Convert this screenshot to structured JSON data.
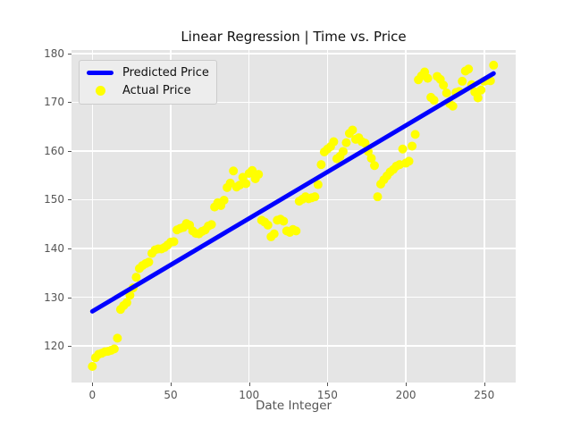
{
  "legend": {
    "position": "upper left",
    "items": [
      {
        "label": "Predicted Price",
        "marker": "line",
        "color": "#0000ff"
      },
      {
        "label": "Actual Price",
        "marker": "dot",
        "color": "#ffff00"
      }
    ]
  },
  "colors": {
    "figure_bg": "#ffffff",
    "plot_bg": "#e5e5e5",
    "grid": "#ffffff",
    "tick": "#555555",
    "tick_label": "#555555",
    "axis_label": "#555555",
    "title": "#111111",
    "legend_bg": "#ededed",
    "legend_border": "#cccccc",
    "line": "#0000ff",
    "scatter": "#ffff00"
  },
  "chart_data": {
    "type": "scatter",
    "title": "Linear Regression | Time vs. Price",
    "xlabel": "Date Integer",
    "ylabel": "",
    "axes": {
      "xlim": [
        -13.3,
        270.1
      ],
      "ylim": [
        112.5,
        180.7
      ],
      "xticks": [
        0,
        50,
        100,
        150,
        200,
        250
      ],
      "yticks": [
        120,
        130,
        140,
        150,
        160,
        170,
        180
      ],
      "grid": true
    },
    "series": [
      {
        "name": "Predicted Price",
        "type": "line",
        "color": "#0000ff",
        "x": [
          0,
          256
        ],
        "y": [
          127.1,
          175.9
        ]
      },
      {
        "name": "Actual Price",
        "type": "scatter",
        "color": "#ffff00",
        "x": [
          0,
          2,
          4,
          6,
          8,
          10,
          12,
          14,
          16,
          18,
          20,
          22,
          24,
          26,
          28,
          30,
          32,
          34,
          36,
          38,
          40,
          42,
          44,
          46,
          48,
          50,
          52,
          54,
          56,
          58,
          60,
          62,
          64,
          66,
          68,
          70,
          72,
          74,
          76,
          78,
          80,
          82,
          84,
          86,
          88,
          90,
          92,
          94,
          96,
          98,
          100,
          102,
          104,
          106,
          108,
          110,
          112,
          114,
          116,
          118,
          120,
          122,
          124,
          126,
          128,
          130,
          132,
          134,
          136,
          138,
          140,
          142,
          144,
          146,
          148,
          150,
          152,
          154,
          156,
          158,
          160,
          162,
          164,
          166,
          168,
          170,
          172,
          174,
          176,
          178,
          180,
          182,
          184,
          186,
          188,
          190,
          192,
          194,
          196,
          198,
          200,
          202,
          204,
          206,
          208,
          210,
          212,
          214,
          216,
          218,
          220,
          222,
          224,
          226,
          228,
          230,
          232,
          234,
          236,
          238,
          240,
          242,
          244,
          246,
          248,
          250,
          252,
          254,
          256
        ],
        "y": [
          115.8,
          117.6,
          118.3,
          118.5,
          118.8,
          118.9,
          119.1,
          119.4,
          121.6,
          127.5,
          128.3,
          128.9,
          130.4,
          131.9,
          134.1,
          135.9,
          136.5,
          136.9,
          137.2,
          139.0,
          139.7,
          139.9,
          139.9,
          140.2,
          140.7,
          141.3,
          141.4,
          143.8,
          144.1,
          144.3,
          145.1,
          144.8,
          143.6,
          143.1,
          143.0,
          143.5,
          143.8,
          144.6,
          144.9,
          148.5,
          149.4,
          148.8,
          149.9,
          152.5,
          153.4,
          155.9,
          152.6,
          153.0,
          154.6,
          153.3,
          155.4,
          156.0,
          154.3,
          155.2,
          145.8,
          145.4,
          144.8,
          142.4,
          143.0,
          145.8,
          146.0,
          145.6,
          143.6,
          143.3,
          143.9,
          143.6,
          149.7,
          150.1,
          150.6,
          150.2,
          150.4,
          150.6,
          153.1,
          157.2,
          159.8,
          160.4,
          160.9,
          161.9,
          158.4,
          158.9,
          159.9,
          161.7,
          163.6,
          164.3,
          162.4,
          162.7,
          161.9,
          161.6,
          159.9,
          158.5,
          157.0,
          150.6,
          153.2,
          154.1,
          154.9,
          155.7,
          156.2,
          156.9,
          157.2,
          160.4,
          157.5,
          157.9,
          161.0,
          163.4,
          174.6,
          175.4,
          176.2,
          174.9,
          171.0,
          170.4,
          175.3,
          174.7,
          173.5,
          171.9,
          169.7,
          169.2,
          172.0,
          172.2,
          174.3,
          176.4,
          176.8,
          173.6,
          172.1,
          170.9,
          172.5,
          174.3,
          174.5,
          174.4,
          177.6
        ]
      }
    ]
  }
}
